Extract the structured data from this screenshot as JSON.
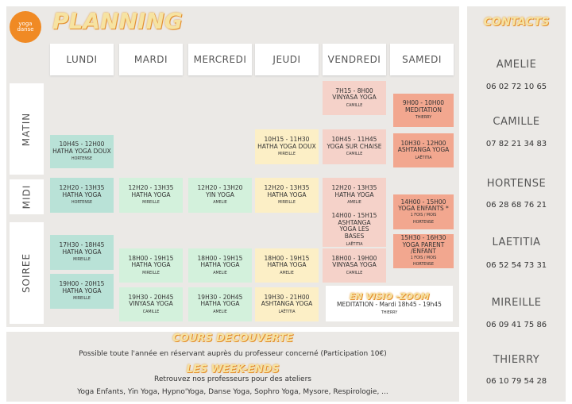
{
  "header": {
    "title": "PLANNING",
    "logo": [
      "yoga",
      "danse"
    ]
  },
  "periods": [
    "MATIN",
    "MIDI",
    "SOIREE"
  ],
  "days": [
    {
      "name": "LUNDI",
      "classes": [
        {
          "time": "10H45 - 12H00",
          "title": "HATHA YOGA DOUX",
          "teacher": "HORTENSE"
        },
        {
          "time": "12H20 - 13H35",
          "title": "HATHA YOGA",
          "teacher": "HORTENSE"
        },
        {
          "time": "17H30 - 18H45",
          "title": "HATHA YOGA",
          "teacher": "MIREILLE"
        },
        {
          "time": "19H00 - 20H15",
          "title": "HATHA YOGA",
          "teacher": "MIREILLE"
        }
      ]
    },
    {
      "name": "MARDI",
      "classes": [
        {
          "time": "12H20 - 13H35",
          "title": "HATHA YOGA",
          "teacher": "MIREILLE"
        },
        {
          "time": "18H00 - 19H15",
          "title": "HATHA YOGA",
          "teacher": "MIREILLE"
        },
        {
          "time": "19H30 - 20H45",
          "title": "VINYASA YOGA",
          "teacher": "CAMILLE"
        }
      ]
    },
    {
      "name": "MERCREDI",
      "classes": [
        {
          "time": "12H20 - 13H20",
          "title": "YIN YOGA",
          "teacher": "AMELIE"
        },
        {
          "time": "18H00 - 19H15",
          "title": "HATHA YOGA",
          "teacher": "AMELIE"
        },
        {
          "time": "19H30 - 20H45",
          "title": "HATHA YOGA",
          "teacher": "AMELIE"
        }
      ]
    },
    {
      "name": "JEUDI",
      "classes": [
        {
          "time": "10H15 - 11H30",
          "title": "HATHA YOGA DOUX",
          "teacher": "MIREILLE"
        },
        {
          "time": "12H20 - 13H35",
          "title": "HATHA YOGA",
          "teacher": "MIREILLE"
        },
        {
          "time": "18H00 - 19H15",
          "title": "HATHA YOGA",
          "teacher": "AMELIE"
        },
        {
          "time": "19H30 - 21H00",
          "title": "ASHTANGA YOGA",
          "teacher": "LAËTITIA"
        }
      ]
    },
    {
      "name": "VENDREDI",
      "classes": [
        {
          "time": "7H15 - 8H00",
          "title": "VINYASA YOGA",
          "teacher": "CAMILLE"
        },
        {
          "time": "10H45 - 11H45",
          "title": "YOGA SUR CHAISE",
          "teacher": "CAMILLE"
        },
        {
          "time": "12H20 - 13H35",
          "title": "HATHA YOGA",
          "teacher": "AMELIE"
        },
        {
          "time": "14H00 - 15H15",
          "title": "ASHTANGA YOGA LES BASES",
          "teacher": "LAËTITIA"
        },
        {
          "time": "18H00 - 19H00",
          "title": "VINYASA YOGA",
          "teacher": "CAMILLE"
        }
      ]
    },
    {
      "name": "SAMEDI",
      "classes": [
        {
          "time": "9H00 - 10H00",
          "title": "MEDITATION",
          "teacher": "THIERRY"
        },
        {
          "time": "10H30 - 12H00",
          "title": "ASHTANGA YOGA",
          "teacher": "LAËTITIA"
        },
        {
          "time": "14H00 - 15H00",
          "title": "YOGA ENFANTS *",
          "note": "1 FOIS / MOIS",
          "teacher": "HORTENSE"
        },
        {
          "time": "15H30 - 16H30",
          "title": "YOGA PARENT /ENFANT",
          "note": "1 FOIS / MOIS",
          "teacher": "HORTENSE"
        }
      ]
    }
  ],
  "visio": {
    "title": "EN VISIO -ZOOM",
    "text": "MEDITATION - Mardi 18h45 - 19h45",
    "teacher": "THIERRY"
  },
  "footer": {
    "title1": "COURS DECOUVERTE",
    "text1": "Possible toute l'année en réservant auprès du professeur concerné (Participation 10€)",
    "title2": "LES WEEK-ENDS",
    "text2": "Retrouvez nos professeurs pour des ateliers",
    "text3": "Yoga Enfants, Yin Yoga, Hypno'Yoga, Danse Yoga, Sophro Yoga, Mysore, Respirologie, ..."
  },
  "contacts": {
    "title": "CONTACTS",
    "people": [
      {
        "name": "AMELIE",
        "phone": "06 02 72 10 65"
      },
      {
        "name": "CAMILLE",
        "phone": "07 82 21 34 83"
      },
      {
        "name": "HORTENSE",
        "phone": "06 28 68 76 21"
      },
      {
        "name": "LAETITIA",
        "phone": "06 52 54 73 31"
      },
      {
        "name": "MIREILLE",
        "phone": "06 09 41 75 86"
      },
      {
        "name": "THIERRY",
        "phone": "06 10 79 54 28"
      }
    ]
  }
}
